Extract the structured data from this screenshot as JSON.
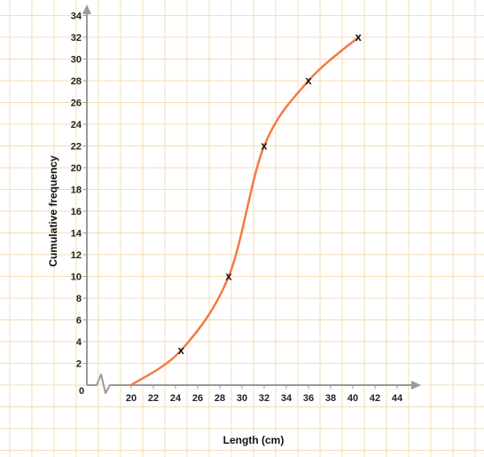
{
  "chart_data": {
    "type": "line",
    "xlabel": "Length (cm)",
    "ylabel": "Cumulative frequency",
    "origin_label": "0",
    "xlim": [
      20,
      45
    ],
    "ylim": [
      0,
      34
    ],
    "x_ticks": [
      20,
      22,
      24,
      26,
      28,
      30,
      32,
      34,
      36,
      38,
      40,
      42,
      44
    ],
    "y_ticks": [
      2,
      4,
      6,
      8,
      10,
      12,
      14,
      16,
      18,
      20,
      22,
      24,
      26,
      28,
      30,
      32,
      34
    ],
    "axis_break": "zigzag on x-axis between 0 and 20",
    "grid": true,
    "curve_start": {
      "x": 20,
      "y": 0
    },
    "series": [
      {
        "points": [
          {
            "x": 24.5,
            "y": 3.2
          },
          {
            "x": 28.8,
            "y": 10
          },
          {
            "x": 32,
            "y": 22
          },
          {
            "x": 36,
            "y": 28
          },
          {
            "x": 40.5,
            "y": 32
          }
        ],
        "marker": "x"
      }
    ],
    "colors": {
      "curve": "#f47a46",
      "grid": "#f5dcb7",
      "axis": "#9a9a9a",
      "marker": "#111111"
    }
  }
}
